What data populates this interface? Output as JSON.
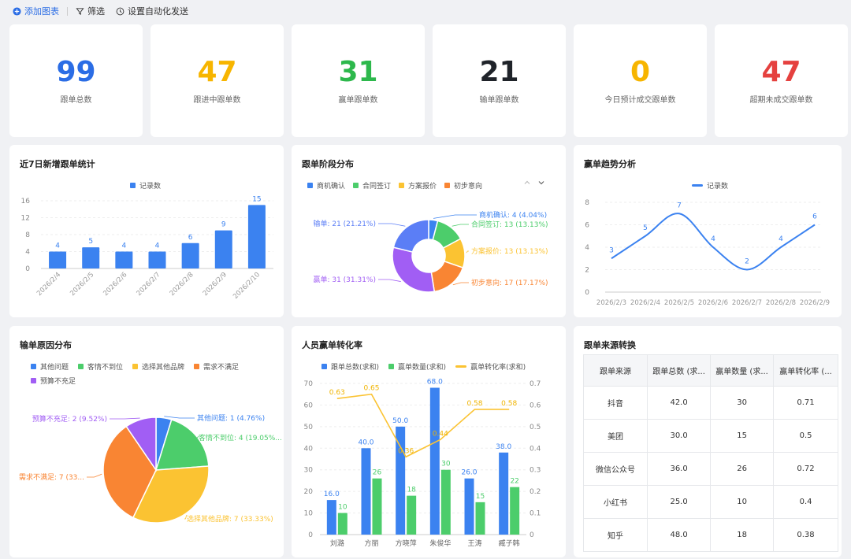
{
  "toolbar": {
    "add_label": "添加图表",
    "filter_label": "筛选",
    "auto_send_label": "设置自动化发送"
  },
  "kpis": [
    {
      "value": "99",
      "label": "跟单总数",
      "color": "#2b6de5"
    },
    {
      "value": "47",
      "label": "跟进中跟单数",
      "color": "#f7b500"
    },
    {
      "value": "31",
      "label": "赢单跟单数",
      "color": "#2db84c"
    },
    {
      "value": "21",
      "label": "输单跟单数",
      "color": "#1f2329"
    },
    {
      "value": "0",
      "label": "今日预计成交跟单数",
      "color": "#f7b500"
    },
    {
      "value": "47",
      "label": "超期未成交跟单数",
      "color": "#e5413f"
    }
  ],
  "panels": {
    "new7": {
      "title": "近7日新增跟单统计",
      "legend": "记录数"
    },
    "stage": {
      "title": "跟单阶段分布"
    },
    "trend": {
      "title": "赢单趋势分析",
      "legend": "记录数"
    },
    "lost": {
      "title": "输单原因分布"
    },
    "conv": {
      "title": "人员赢单转化率"
    },
    "source": {
      "title": "跟单来源转换"
    }
  },
  "colors": {
    "blue": "#3b82f0",
    "green": "#4ccd6b",
    "yellow": "#fbc332",
    "orange": "#f98533",
    "purple": "#a15ef4"
  },
  "chart_data": [
    {
      "type": "bar",
      "title": "近7日新增跟单统计",
      "categories": [
        "2026/2/4",
        "2026/2/5",
        "2026/2/6",
        "2026/2/7",
        "2026/2/8",
        "2026/2/9",
        "2026/2/10"
      ],
      "series": [
        {
          "name": "记录数",
          "values": [
            4,
            5,
            4,
            4,
            6,
            9,
            15
          ]
        }
      ],
      "yticks": [
        0,
        4,
        8,
        12,
        16
      ],
      "ylim": [
        0,
        16
      ]
    },
    {
      "type": "pie",
      "title": "跟单阶段分布",
      "legend": [
        "商机确认",
        "合同签订",
        "方案报价",
        "初步意向"
      ],
      "slices": [
        {
          "name": "商机确认",
          "value": 4,
          "label": "商机确认: 4 (4.04%)",
          "color": "#3b82f0"
        },
        {
          "name": "合同签订",
          "value": 13,
          "label": "合同签订: 13 (13.13%)",
          "color": "#4ccd6b"
        },
        {
          "name": "方案报价",
          "value": 13,
          "label": "方案报价: 13 (13.13%)",
          "color": "#fbc332"
        },
        {
          "name": "初步意向",
          "value": 17,
          "label": "初步意向: 17 (17.17%)",
          "color": "#f98533"
        },
        {
          "name": "赢单",
          "value": 31,
          "label": "赢单: 31 (31.31%)",
          "color": "#a15ef4"
        },
        {
          "name": "输单",
          "value": 21,
          "label": "输单: 21 (21.21%)",
          "color": "#5b7ef6"
        }
      ]
    },
    {
      "type": "line",
      "title": "赢单趋势分析",
      "categories": [
        "2026/2/3",
        "2026/2/4",
        "2026/2/5",
        "2026/2/6",
        "2026/2/7",
        "2026/2/8",
        "2026/2/9"
      ],
      "series": [
        {
          "name": "记录数",
          "values": [
            3,
            5,
            7,
            4,
            2,
            4,
            6
          ]
        }
      ],
      "yticks": [
        0,
        2,
        4,
        6,
        8
      ],
      "ylim": [
        0,
        8
      ]
    },
    {
      "type": "pie",
      "title": "输单原因分布",
      "legend": [
        "其他问题",
        "客情不到位",
        "选择其他品牌",
        "需求不满足",
        "预算不充足"
      ],
      "slices": [
        {
          "name": "其他问题",
          "value": 1,
          "label": "其他问题: 1 (4.76%)",
          "color": "#3b82f0"
        },
        {
          "name": "客情不到位",
          "value": 4,
          "label": "客情不到位: 4 (19.05%...",
          "color": "#4ccd6b"
        },
        {
          "name": "选择其他品牌",
          "value": 7,
          "label": "选择其他品牌: 7 (33.33%)",
          "color": "#fbc332"
        },
        {
          "name": "需求不满足",
          "value": 7,
          "label": "需求不满足: 7 (33...",
          "color": "#f98533"
        },
        {
          "name": "预算不充足",
          "value": 2,
          "label": "预算不充足: 2 (9.52%)",
          "color": "#a15ef4"
        }
      ]
    },
    {
      "type": "bar",
      "title": "人员赢单转化率",
      "categories": [
        "刘潞",
        "方丽",
        "方晓萍",
        "朱俊华",
        "王涛",
        "臧子韩"
      ],
      "series": [
        {
          "name": "跟单总数(求和)",
          "values": [
            16.0,
            40.0,
            50.0,
            68.0,
            26.0,
            38.0
          ],
          "labels": [
            "16.0",
            "40.0",
            "50.0",
            "68.0",
            "26.0",
            "38.0"
          ]
        },
        {
          "name": "赢单数量(求和)",
          "values": [
            10,
            26,
            18,
            30,
            15,
            22
          ],
          "labels": [
            "10",
            "26",
            "18",
            "30",
            "15",
            "22"
          ]
        },
        {
          "name": "赢单转化率(求和)",
          "values": [
            0.63,
            0.65,
            0.36,
            0.44,
            0.58,
            0.58
          ],
          "labels": [
            "0.63",
            "0.65",
            "0.36",
            "0.44",
            "0.58",
            "0.58"
          ],
          "axis": "right"
        }
      ],
      "yticks": [
        0,
        10,
        20,
        30,
        40,
        50,
        60,
        70
      ],
      "ylim": [
        0,
        70
      ],
      "y2ticks": [
        "0",
        "0.1",
        "0.2",
        "0.3",
        "0.4",
        "0.5",
        "0.6",
        "0.7"
      ],
      "y2lim": [
        0,
        0.7
      ]
    }
  ],
  "source_table": {
    "headers": [
      "跟单来源",
      "跟单总数 (求...",
      "赢单数量 (求...",
      "赢单转化率 (..."
    ],
    "rows": [
      [
        "抖音",
        "42.0",
        "30",
        "0.71"
      ],
      [
        "美团",
        "30.0",
        "15",
        "0.5"
      ],
      [
        "微信公众号",
        "36.0",
        "26",
        "0.72"
      ],
      [
        "小红书",
        "25.0",
        "10",
        "0.4"
      ],
      [
        "知乎",
        "48.0",
        "18",
        "0.38"
      ]
    ]
  }
}
